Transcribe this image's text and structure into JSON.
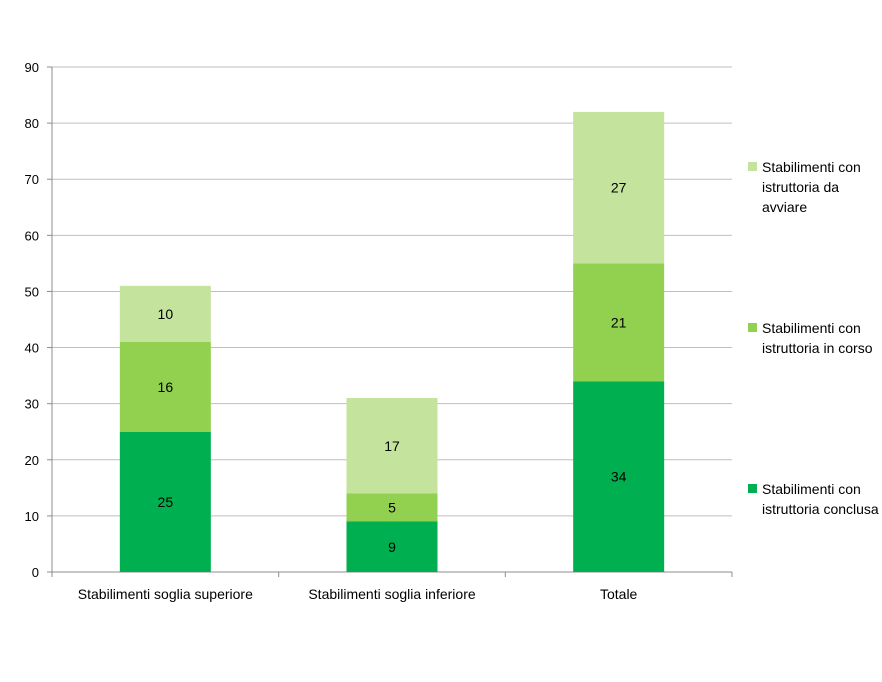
{
  "chart_data": {
    "type": "bar",
    "stacked": true,
    "categories": [
      "Stabilimenti soglia superiore",
      "Stabilimenti soglia inferiore",
      "Totale"
    ],
    "series": [
      {
        "name": "Stabilimenti con istruttoria conclusa",
        "values": [
          25,
          9,
          34
        ],
        "color": "#00b050"
      },
      {
        "name": "Stabilimenti con istruttoria in corso",
        "values": [
          16,
          5,
          21
        ],
        "color": "#92d050"
      },
      {
        "name": "Stabilimenti con istruttoria da avviare",
        "values": [
          10,
          17,
          27
        ],
        "color": "#c4e39d"
      }
    ],
    "ylim": [
      0,
      90
    ],
    "yticks": [
      0,
      10,
      20,
      30,
      40,
      50,
      60,
      70,
      80,
      90
    ],
    "grid": true,
    "legend_position": "right",
    "data_labels": true
  },
  "legend": {
    "items": [
      {
        "label": "Stabilimenti con istruttoria da avviare",
        "color": "#c4e39d"
      },
      {
        "label": "Stabilimenti con istruttoria in corso",
        "color": "#92d050"
      },
      {
        "label": "Stabilimenti con istruttoria conclusa",
        "color": "#00b050"
      }
    ]
  }
}
